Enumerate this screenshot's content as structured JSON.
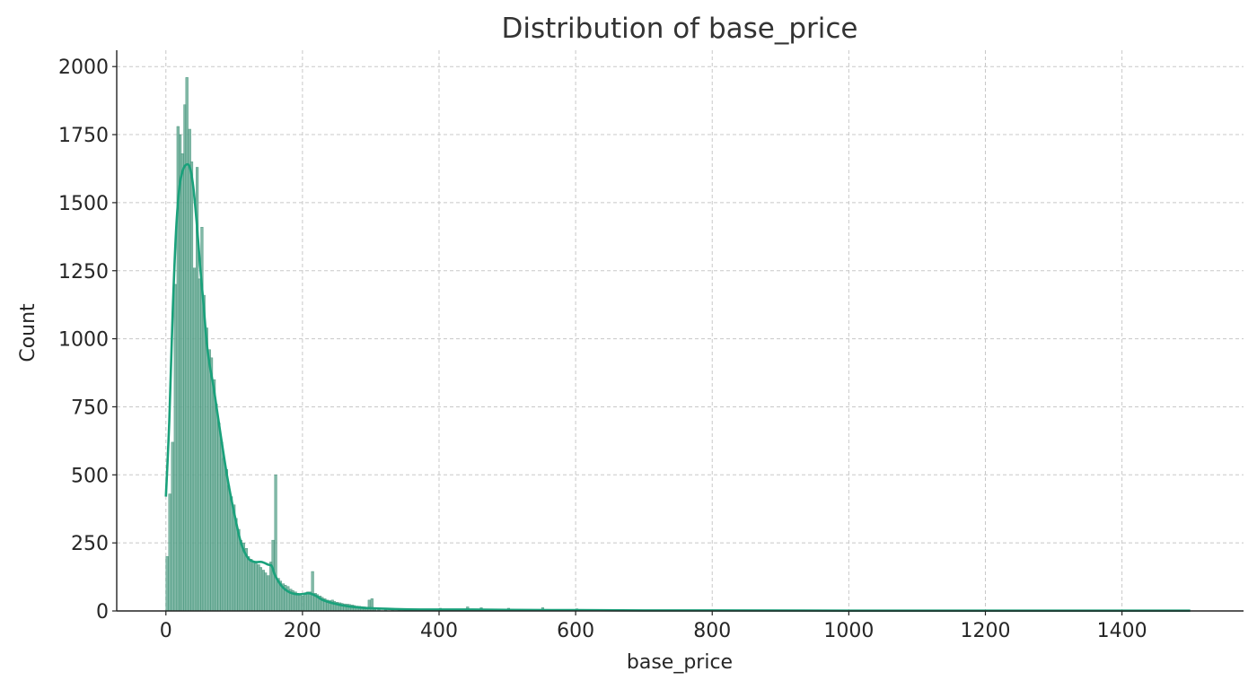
{
  "chart_data": {
    "type": "bar",
    "title": "Distribution of base_price",
    "xlabel": "base_price",
    "ylabel": "Count",
    "xlim": [
      -72,
      1578
    ],
    "ylim": [
      0,
      2060
    ],
    "xticks": [
      0,
      200,
      400,
      600,
      800,
      1000,
      1200,
      1400
    ],
    "yticks": [
      0,
      250,
      500,
      750,
      1000,
      1250,
      1500,
      1750,
      2000
    ],
    "grid": true,
    "histogram": {
      "bin_width": 3.6,
      "bins": [
        [
          0,
          200
        ],
        [
          4,
          430
        ],
        [
          8,
          620
        ],
        [
          12,
          1200
        ],
        [
          16,
          1780
        ],
        [
          19,
          1750
        ],
        [
          22,
          1680
        ],
        [
          26,
          1860
        ],
        [
          29,
          1960
        ],
        [
          33,
          1770
        ],
        [
          36,
          1650
        ],
        [
          40,
          1260
        ],
        [
          44,
          1630
        ],
        [
          47,
          1220
        ],
        [
          51,
          1410
        ],
        [
          54,
          1160
        ],
        [
          58,
          1040
        ],
        [
          62,
          960
        ],
        [
          65,
          930
        ],
        [
          69,
          850
        ],
        [
          72,
          760
        ],
        [
          76,
          690
        ],
        [
          80,
          620
        ],
        [
          83,
          560
        ],
        [
          87,
          520
        ],
        [
          90,
          460
        ],
        [
          94,
          420
        ],
        [
          98,
          390
        ],
        [
          101,
          340
        ],
        [
          105,
          300
        ],
        [
          108,
          260
        ],
        [
          112,
          250
        ],
        [
          116,
          230
        ],
        [
          119,
          200
        ],
        [
          123,
          190
        ],
        [
          126,
          180
        ],
        [
          130,
          175
        ],
        [
          134,
          170
        ],
        [
          137,
          160
        ],
        [
          141,
          150
        ],
        [
          144,
          140
        ],
        [
          148,
          130
        ],
        [
          152,
          180
        ],
        [
          155,
          260
        ],
        [
          159,
          500
        ],
        [
          163,
          120
        ],
        [
          166,
          110
        ],
        [
          170,
          100
        ],
        [
          173,
          95
        ],
        [
          177,
          90
        ],
        [
          181,
          80
        ],
        [
          184,
          75
        ],
        [
          188,
          70
        ],
        [
          191,
          65
        ],
        [
          195,
          60
        ],
        [
          199,
          55
        ],
        [
          202,
          60
        ],
        [
          206,
          70
        ],
        [
          209,
          70
        ],
        [
          213,
          145
        ],
        [
          217,
          65
        ],
        [
          220,
          60
        ],
        [
          224,
          55
        ],
        [
          227,
          50
        ],
        [
          231,
          45
        ],
        [
          235,
          40
        ],
        [
          238,
          38
        ],
        [
          242,
          40
        ],
        [
          245,
          35
        ],
        [
          249,
          32
        ],
        [
          253,
          30
        ],
        [
          256,
          28
        ],
        [
          260,
          26
        ],
        [
          264,
          25
        ],
        [
          267,
          24
        ],
        [
          271,
          22
        ],
        [
          274,
          20
        ],
        [
          278,
          18
        ],
        [
          282,
          17
        ],
        [
          285,
          16
        ],
        [
          289,
          15
        ],
        [
          292,
          14
        ],
        [
          296,
          40
        ],
        [
          300,
          45
        ],
        [
          304,
          12
        ],
        [
          310,
          10
        ],
        [
          320,
          9
        ],
        [
          330,
          8
        ],
        [
          340,
          8
        ],
        [
          350,
          7
        ],
        [
          360,
          6
        ],
        [
          380,
          6
        ],
        [
          400,
          10
        ],
        [
          420,
          6
        ],
        [
          440,
          15
        ],
        [
          460,
          12
        ],
        [
          480,
          6
        ],
        [
          500,
          10
        ],
        [
          520,
          5
        ],
        [
          550,
          12
        ],
        [
          580,
          4
        ],
        [
          600,
          8
        ],
        [
          640,
          5
        ],
        [
          680,
          3
        ],
        [
          720,
          3
        ],
        [
          780,
          2
        ],
        [
          850,
          2
        ],
        [
          900,
          1
        ],
        [
          1000,
          1
        ],
        [
          1100,
          1
        ],
        [
          1200,
          1
        ],
        [
          1300,
          1
        ],
        [
          1400,
          1
        ],
        [
          1500,
          1
        ]
      ]
    },
    "kde": {
      "x": [
        0,
        5,
        10,
        15,
        20,
        25,
        30,
        35,
        40,
        45,
        50,
        55,
        60,
        65,
        70,
        80,
        90,
        100,
        110,
        120,
        130,
        140,
        150,
        155,
        160,
        170,
        180,
        190,
        200,
        210,
        220,
        230,
        250,
        270,
        300,
        350,
        400,
        450,
        500,
        600,
        700,
        800,
        1000,
        1200,
        1400,
        1500
      ],
      "y": [
        420,
        700,
        1100,
        1400,
        1560,
        1620,
        1640,
        1630,
        1560,
        1430,
        1270,
        1130,
        980,
        890,
        820,
        650,
        490,
        360,
        250,
        195,
        180,
        180,
        170,
        165,
        130,
        90,
        70,
        62,
        62,
        65,
        55,
        40,
        25,
        16,
        10,
        6,
        5,
        5,
        4,
        3,
        2,
        2,
        1,
        1,
        1,
        1
      ]
    },
    "colors": {
      "bars": "#6aac96",
      "kde": "#1aa17b"
    }
  }
}
